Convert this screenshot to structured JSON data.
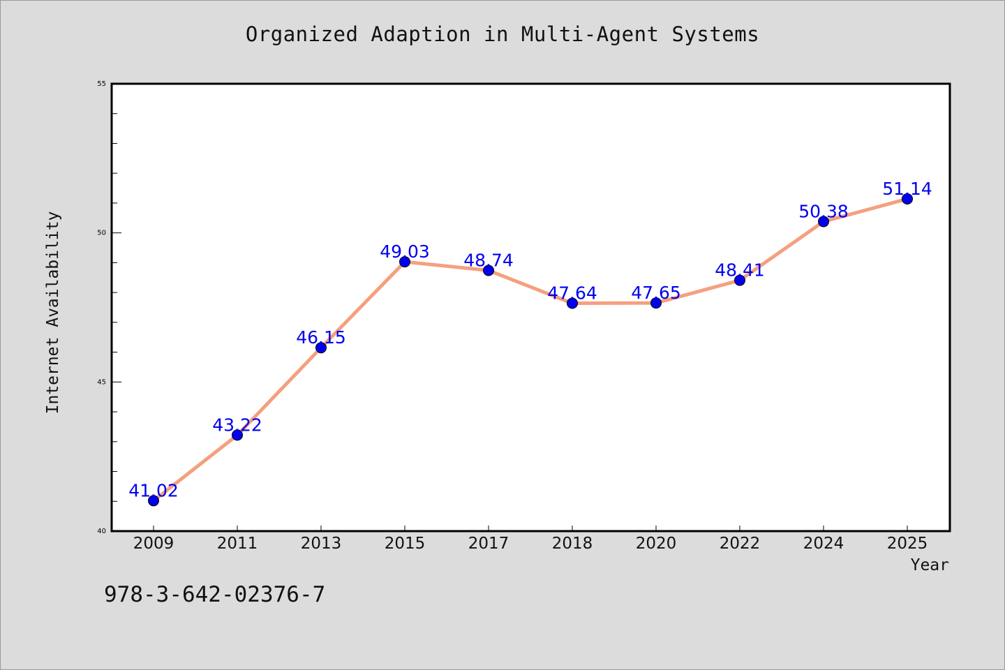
{
  "chart_data": {
    "type": "line",
    "title": "Organized Adaption in Multi-Agent Systems",
    "xlabel": "Year",
    "ylabel": "Internet Availability",
    "categories": [
      "2009",
      "2011",
      "2013",
      "2015",
      "2017",
      "2018",
      "2020",
      "2022",
      "2024",
      "2025"
    ],
    "series": [
      {
        "values": [
          41.02,
          43.22,
          46.15,
          49.03,
          48.74,
          47.64,
          47.65,
          48.41,
          50.38,
          51.14
        ],
        "line_color": "#f4a07f",
        "marker_color": "#0000ee",
        "label_color": "#0000ee"
      }
    ],
    "data_labels": [
      "41.02",
      "43.22",
      "46.15",
      "49.03",
      "48.74",
      "47.64",
      "47.65",
      "48.41",
      "50.38",
      "51.14"
    ],
    "ylim": [
      40,
      55
    ],
    "yticks": [
      "40",
      "45",
      "50",
      "55"
    ],
    "grid": false,
    "legend": "none"
  },
  "footnote": "978-3-642-02376-7",
  "colors": {
    "background": "#dcdcdc",
    "plot_background": "#ffffff"
  }
}
